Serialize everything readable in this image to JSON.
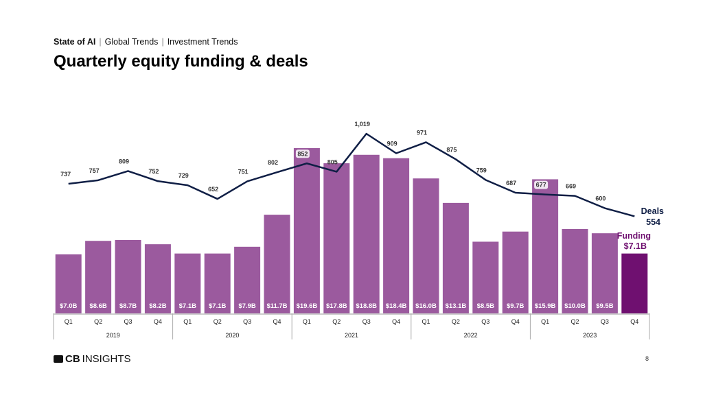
{
  "breadcrumb": {
    "section": "State of AI",
    "items": [
      "Global Trends",
      "Investment Trends"
    ],
    "separator": "|"
  },
  "title": "Quarterly equity funding & deals",
  "chart_data": {
    "type": "bar+line",
    "categories": [
      "Q1",
      "Q2",
      "Q3",
      "Q4",
      "Q1",
      "Q2",
      "Q3",
      "Q4",
      "Q1",
      "Q2",
      "Q3",
      "Q4",
      "Q1",
      "Q2",
      "Q3",
      "Q4",
      "Q1",
      "Q2",
      "Q3",
      "Q4"
    ],
    "years": [
      "2019",
      "2020",
      "2021",
      "2022",
      "2023"
    ],
    "series": [
      {
        "name": "Funding",
        "type": "bar",
        "unit": "$B",
        "values": [
          7.0,
          8.6,
          8.7,
          8.2,
          7.1,
          7.1,
          7.9,
          11.7,
          19.6,
          17.8,
          18.8,
          18.4,
          16.0,
          13.1,
          8.5,
          9.7,
          15.9,
          10.0,
          9.5,
          7.1
        ],
        "labels": [
          "$7.0B",
          "$8.6B",
          "$8.7B",
          "$8.2B",
          "$7.1B",
          "$7.1B",
          "$7.9B",
          "$11.7B",
          "$19.6B",
          "$17.8B",
          "$18.8B",
          "$18.4B",
          "$16.0B",
          "$13.1B",
          "$8.5B",
          "$9.7B",
          "$15.9B",
          "$10.0B",
          "$9.5B",
          ""
        ],
        "color": "#9b5a9e",
        "highlight_color": "#6f1070"
      },
      {
        "name": "Deals",
        "type": "line",
        "values": [
          737,
          757,
          809,
          752,
          729,
          652,
          751,
          802,
          852,
          805,
          1019,
          909,
          971,
          875,
          759,
          687,
          677,
          669,
          600,
          554
        ],
        "labels": [
          "737",
          "757",
          "809",
          "752",
          "729",
          "652",
          "751",
          "802",
          "852",
          "805",
          "1,019",
          "909",
          "971",
          "875",
          "759",
          "687",
          "677",
          "669",
          "600",
          ""
        ],
        "color": "#0f1e45"
      }
    ],
    "end_labels": {
      "deals_name": "Deals",
      "deals_value": "554",
      "funding_name": "Funding",
      "funding_value": "$7.1B"
    },
    "grid": false
  },
  "footer": {
    "logo": "CBINSIGHTS",
    "logo_bold": "CB",
    "logo_rest": "INSIGHTS",
    "page": "8"
  }
}
